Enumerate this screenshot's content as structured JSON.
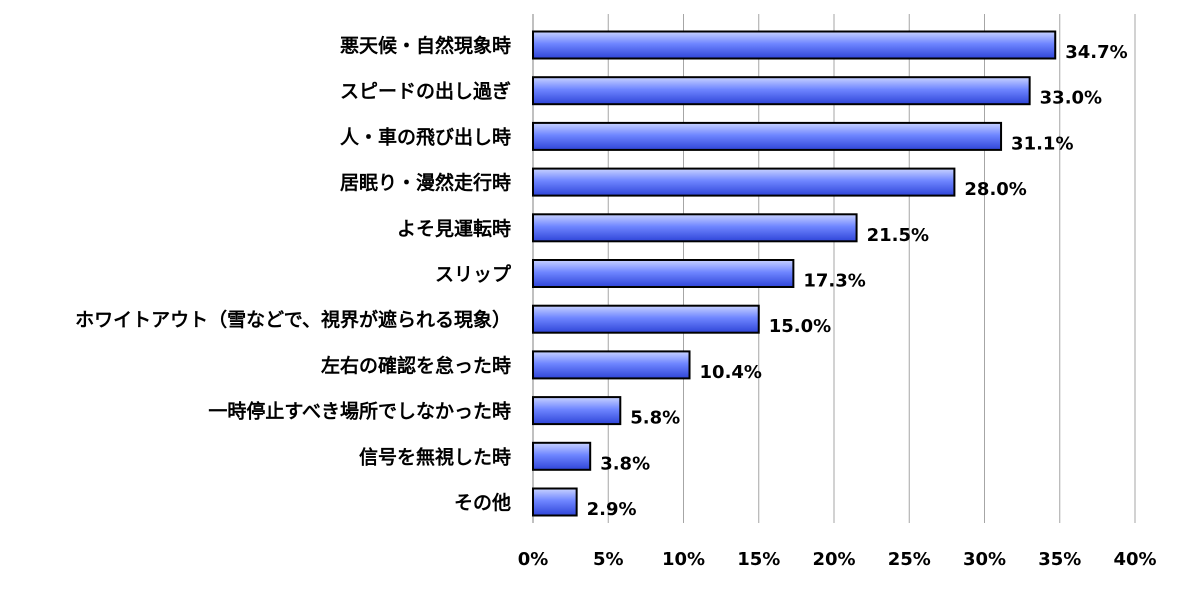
{
  "chart_data": {
    "type": "bar",
    "orientation": "horizontal",
    "categories": [
      "悪天候・自然現象時",
      "スピードの出し過ぎ",
      "人・車の飛び出し時",
      "居眠り・漫然走行時",
      "よそ見運転時",
      "スリップ",
      "ホワイトアウト（雪などで、視界が遮られる現象）",
      "左右の確認を怠った時",
      "一時停止すべき場所でしなかった時",
      "信号を無視した時",
      "その他"
    ],
    "values": [
      34.7,
      33.0,
      31.1,
      28.0,
      21.5,
      17.3,
      15.0,
      10.4,
      5.8,
      3.8,
      2.9
    ],
    "value_labels": [
      "34.7%",
      "33.0%",
      "31.1%",
      "28.0%",
      "21.5%",
      "17.3%",
      "15.0%",
      "10.4%",
      "5.8%",
      "3.8%",
      "2.9%"
    ],
    "xlim": [
      0,
      40
    ],
    "x_ticks": [
      0,
      5,
      10,
      15,
      20,
      25,
      30,
      35,
      40
    ],
    "x_tick_labels": [
      "0%",
      "5%",
      "10%",
      "15%",
      "20%",
      "25%",
      "30%",
      "35%",
      "40%"
    ],
    "grid": true,
    "legend": "none",
    "colors": {
      "bar_light": "#c8d2ff",
      "bar_mid": "#6f86ff",
      "bar_dark": "#2f45d8",
      "bar_border": "#000000",
      "grid": "#a6a6a6",
      "axis": "#808080"
    }
  }
}
